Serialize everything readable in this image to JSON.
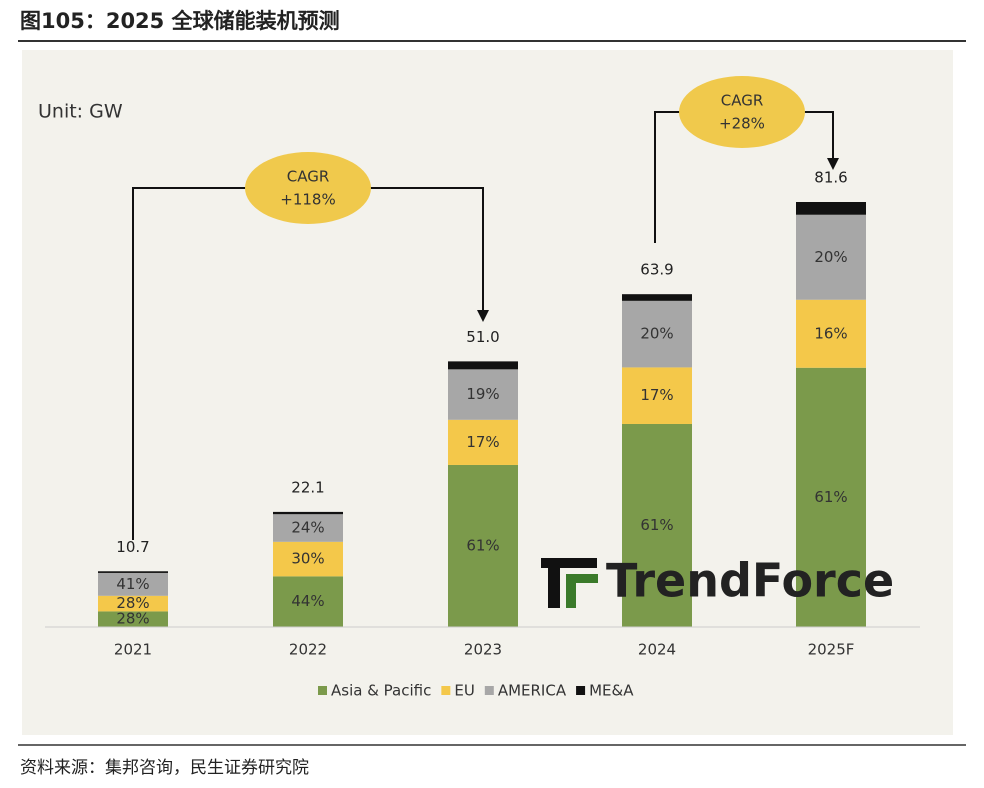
{
  "header": {
    "title": "图105：2025 全球储能装机预测"
  },
  "chart_data": {
    "type": "stacked-bar",
    "unit": "Unit: GW",
    "categories": [
      "2021",
      "2022",
      "2023",
      "2024",
      "2025F"
    ],
    "series": [
      {
        "name": "Asia & Pacific",
        "color": "#7b9a4b",
        "values": [
          28,
          44,
          61,
          61,
          61
        ],
        "value_labels": [
          "28%",
          "44%",
          "61%",
          "61%",
          "61%"
        ]
      },
      {
        "name": "EU",
        "color": "#f4c84a",
        "values": [
          28,
          30,
          17,
          17,
          16
        ],
        "value_labels": [
          "28%",
          "30%",
          "17%",
          "17%",
          "16%"
        ]
      },
      {
        "name": "AMERICA",
        "color": "#a7a7a7",
        "values": [
          41,
          24,
          19,
          20,
          20
        ],
        "value_labels": [
          "41%",
          "24%",
          "19%",
          "20%",
          "20%"
        ]
      },
      {
        "name": "ME&A",
        "color": "#111111",
        "values": [
          3,
          2,
          3,
          2,
          3
        ]
      }
    ],
    "totals": {
      "values": [
        10.7,
        22.1,
        51.0,
        63.9,
        81.6
      ],
      "value_labels": [
        "10.7",
        "22.1",
        "51.0",
        "63.9",
        "81.6"
      ]
    },
    "annotations": [
      {
        "title": "CAGR",
        "text": "+118%"
      },
      {
        "title": "CAGR",
        "text": "+28%"
      }
    ],
    "watermark": "TrendForce"
  },
  "footer": {
    "source": "资料来源：集邦咨询，民生证券研究院"
  }
}
